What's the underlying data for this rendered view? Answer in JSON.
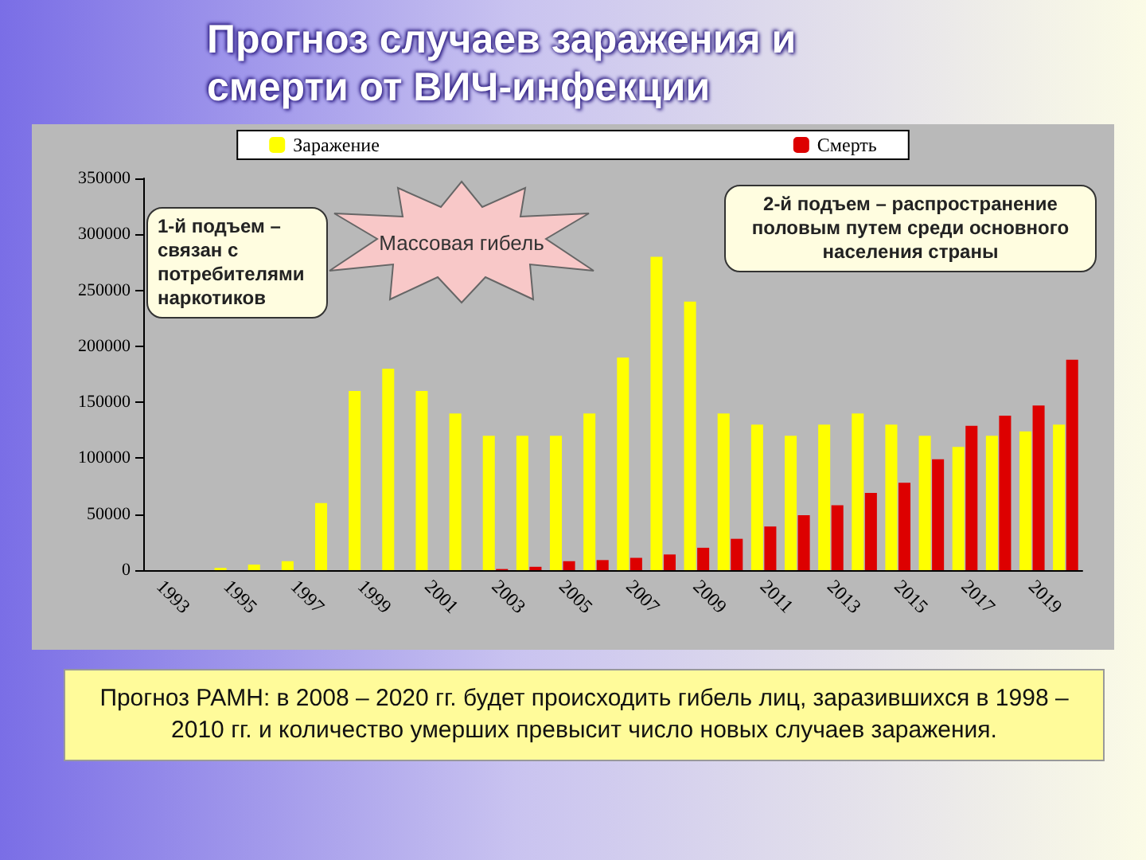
{
  "chart_data": {
    "type": "bar",
    "title": "Прогноз  случаев заражения и смерти от ВИЧ-инфекции",
    "categories": [
      "1993",
      null,
      "1995",
      null,
      "1997",
      null,
      "1999",
      null,
      "2001",
      null,
      "2003",
      null,
      "2005",
      null,
      "2007",
      null,
      "2009",
      null,
      "2011",
      null,
      "2013",
      null,
      "2015",
      null,
      "2017",
      null,
      "2019",
      null
    ],
    "series": [
      {
        "name": "Заражение",
        "color": "#ffff00",
        "values": [
          0,
          0,
          2000,
          5000,
          8000,
          60000,
          160000,
          180000,
          160000,
          140000,
          120000,
          120000,
          120000,
          140000,
          190000,
          280000,
          240000,
          140000,
          130000,
          120000,
          130000,
          140000,
          130000,
          120000,
          110000,
          120000,
          124000,
          130000
        ]
      },
      {
        "name": "Смерть",
        "color": "#dd0000",
        "values": [
          0,
          0,
          0,
          0,
          0,
          0,
          0,
          0,
          0,
          0,
          1000,
          3000,
          8000,
          9000,
          11000,
          14000,
          20000,
          28000,
          39000,
          49000,
          58000,
          69000,
          78000,
          99000,
          129000,
          138000,
          147000,
          188000
        ]
      }
    ],
    "ylim": [
      0,
      350000
    ],
    "yticks": [
      0,
      50000,
      100000,
      150000,
      200000,
      250000,
      300000,
      350000
    ],
    "grid": false,
    "legend": "top",
    "annotations": [
      "1-й подъем – связан с потребителями наркотиков",
      "2-й подъем – распространение половым путем среди основного населения страны",
      "Массовая гибель",
      "Прогноз РАМН: в 2008 – 2020 гг. будет происходить гибель лиц, заразившихся в 1998 – 2010 гг. и количество умерших  превысит число новых случаев заражения."
    ]
  }
}
